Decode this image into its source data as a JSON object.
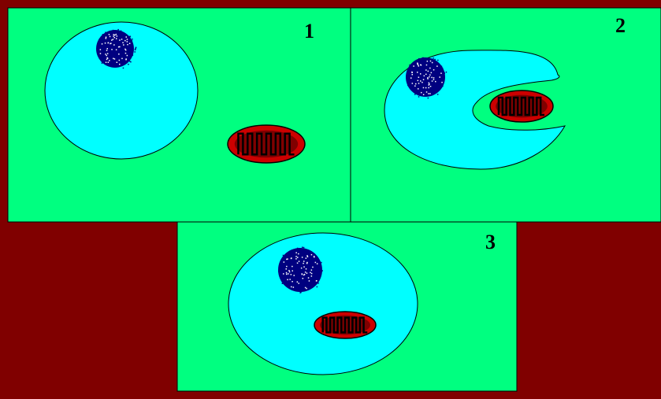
{
  "colors": {
    "background": "#800000",
    "panel": "#00ff80",
    "cell": "#00ffff",
    "nucleus": "#000080",
    "mitochondrion": "#cc0000",
    "mito_inner": "#800000",
    "outline": "#000000"
  },
  "panels": [
    {
      "label": "1"
    },
    {
      "label": "2"
    },
    {
      "label": "3"
    }
  ]
}
